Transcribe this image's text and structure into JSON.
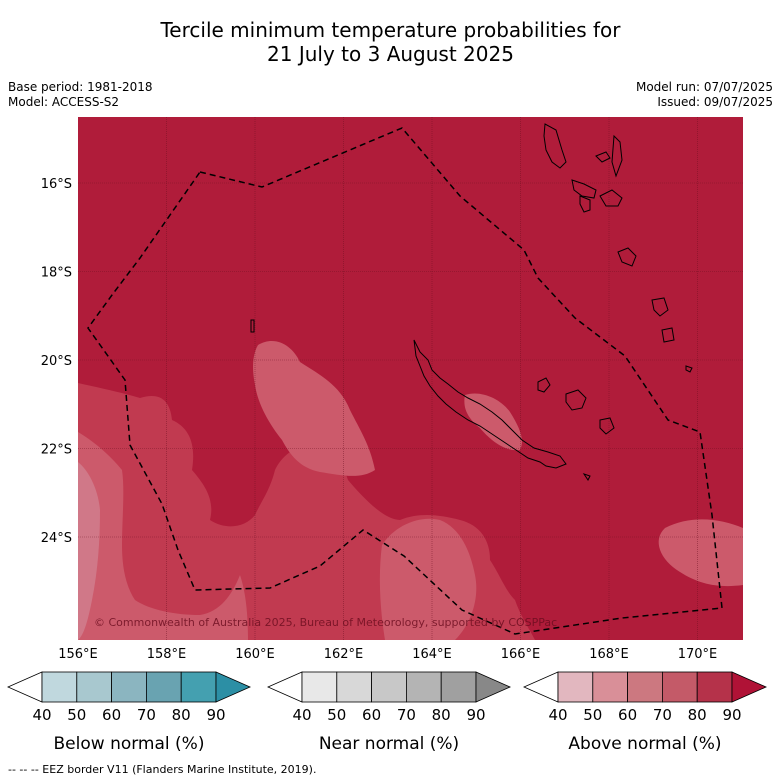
{
  "title": {
    "line1": "Tercile minimum temperature probabilities for",
    "line2": "21 July to 3 August 2025"
  },
  "meta": {
    "base_period": "Base period: 1981-2018",
    "model": "Model: ACCESS-S2",
    "model_run": "Model run: 07/07/2025",
    "issued": "Issued: 09/07/2025"
  },
  "map": {
    "lon_labels": [
      "156°E",
      "158°E",
      "160°E",
      "162°E",
      "164°E",
      "166°E",
      "168°E",
      "170°E"
    ],
    "lat_labels": [
      "16°S",
      "18°S",
      "20°S",
      "22°S",
      "24°S"
    ],
    "copyright": "© Commonwealth of Australia 2025, Bureau of Meteorology, supported by COSPPac",
    "background_color": "#b01c3a",
    "overlay_colors": [
      "#c13a50",
      "#cc5a6b",
      "#d07888"
    ]
  },
  "colorbars": [
    {
      "caption": "Below normal (%)",
      "ticks": [
        "40",
        "50",
        "60",
        "70",
        "80",
        "90"
      ],
      "colors": [
        "#ffffff",
        "#c0d8de",
        "#a8c8cf",
        "#8bb5c0",
        "#69a3b1",
        "#44a0b0",
        "#2c8fa5"
      ]
    },
    {
      "caption": "Near normal (%)",
      "ticks": [
        "40",
        "50",
        "60",
        "70",
        "80",
        "90"
      ],
      "colors": [
        "#ffffff",
        "#e8e8e8",
        "#d8d8d8",
        "#c8c8c8",
        "#b4b4b4",
        "#a0a0a0",
        "#888888"
      ]
    },
    {
      "caption": "Above normal (%)",
      "ticks": [
        "40",
        "50",
        "60",
        "70",
        "80",
        "90"
      ],
      "colors": [
        "#ffffff",
        "#e2b7bf",
        "#d98f98",
        "#cc7880",
        "#c45a68",
        "#b5324a",
        "#b01236"
      ]
    }
  ],
  "footer": "--  --  -- EEZ border V11 (Flanders Marine Institute, 2019)."
}
